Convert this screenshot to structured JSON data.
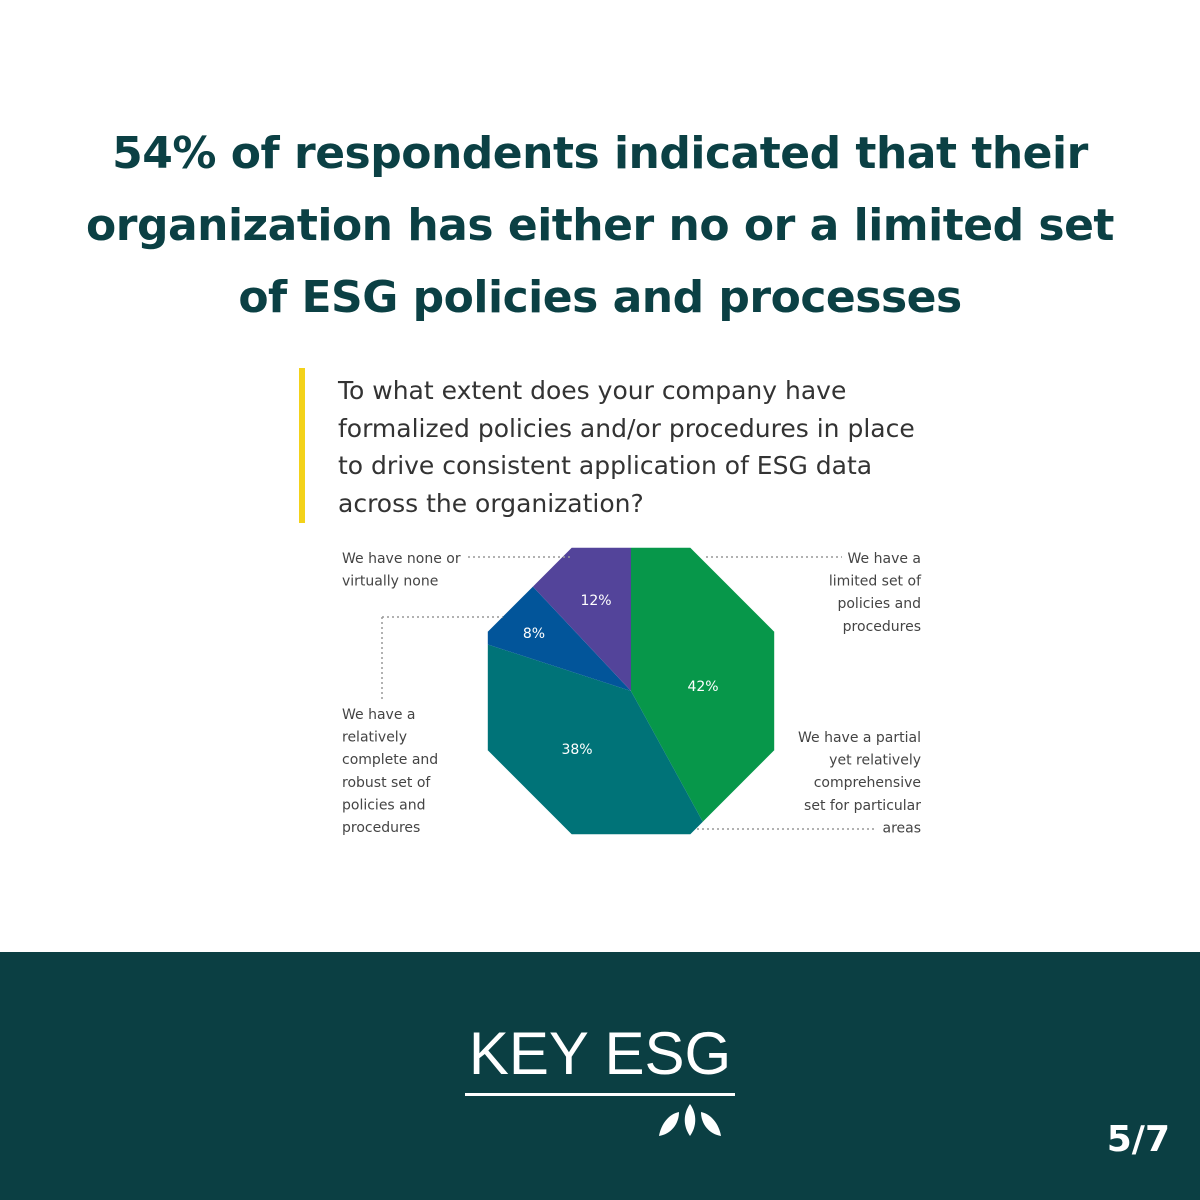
{
  "headline": "54% of respondents indicated that their organization has either no or a limited set of ESG policies and processes",
  "chart_data": {
    "type": "pie",
    "title": "To what extent does your company have formalized policies and/or procedures in place to drive consistent application of ESG data across the organization?",
    "slices": [
      {
        "label_lines": [
          "We have a",
          "limited set of",
          "policies and",
          "procedures"
        ],
        "value": 42,
        "value_label": "42%",
        "color": "#07974a"
      },
      {
        "label_lines": [
          "We have a partial",
          "yet relatively",
          "comprehensive",
          "set for particular",
          "areas"
        ],
        "value": 38,
        "value_label": "38%",
        "color": "#007378"
      },
      {
        "label_lines": [
          "We have a",
          "relatively",
          "complete and",
          "robust set of",
          "policies and",
          "procedures"
        ],
        "value": 8,
        "value_label": "8%",
        "color": "#02559a"
      },
      {
        "label_lines": [
          "We have none or",
          "virtually none"
        ],
        "value": 12,
        "value_label": "12%",
        "color": "#53449a"
      }
    ]
  },
  "footer": {
    "logo": "KEY ESG",
    "page": "5/7",
    "background": "#0b3f43"
  },
  "colors": {
    "headline": "#0b4044",
    "accent_bar": "#f3d21a"
  }
}
